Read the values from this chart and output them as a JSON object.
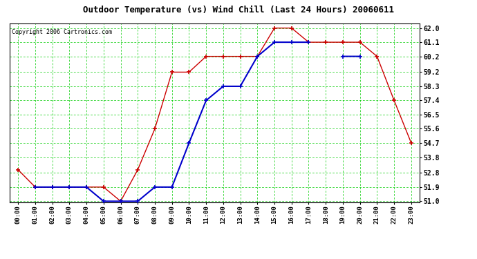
{
  "title": "Outdoor Temperature (vs) Wind Chill (Last 24 Hours) 20060611",
  "copyright": "Copyright 2006 Cartronics.com",
  "hours": [
    "00:00",
    "01:00",
    "02:00",
    "03:00",
    "04:00",
    "05:00",
    "06:00",
    "07:00",
    "08:00",
    "09:00",
    "10:00",
    "11:00",
    "12:00",
    "13:00",
    "14:00",
    "15:00",
    "16:00",
    "17:00",
    "18:00",
    "19:00",
    "20:00",
    "21:00",
    "22:00",
    "23:00"
  ],
  "temp": [
    53.0,
    51.9,
    51.9,
    51.9,
    51.9,
    51.9,
    51.0,
    53.0,
    55.6,
    59.2,
    59.2,
    60.2,
    60.2,
    60.2,
    60.2,
    62.0,
    62.0,
    61.1,
    61.1,
    61.1,
    61.1,
    60.2,
    57.4,
    54.7
  ],
  "windchill": [
    null,
    51.9,
    51.9,
    51.9,
    51.9,
    51.0,
    51.0,
    51.0,
    51.9,
    51.9,
    54.7,
    57.4,
    58.3,
    58.3,
    60.2,
    61.1,
    61.1,
    61.1,
    null,
    60.2,
    60.2,
    null,
    null,
    null
  ],
  "ylim_min": 51.0,
  "ylim_max": 62.0,
  "yticks": [
    51.0,
    51.9,
    52.8,
    53.8,
    54.7,
    55.6,
    56.5,
    57.4,
    58.3,
    59.2,
    60.2,
    61.1,
    62.0
  ],
  "temp_color": "#cc0000",
  "windchill_color": "#0000cc",
  "grid_color": "#00cc00",
  "bg_color": "#ffffff"
}
